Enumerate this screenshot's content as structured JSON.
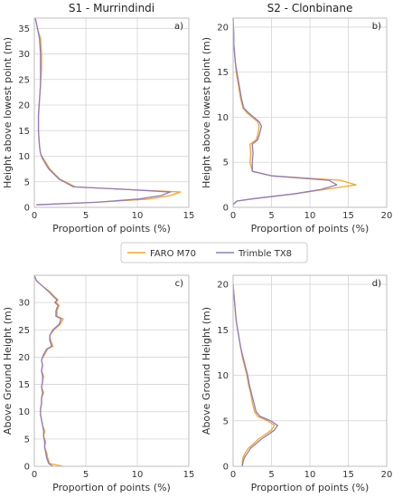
{
  "legend": {
    "entries": [
      {
        "name": "FARO M70",
        "color": "#f5a623"
      },
      {
        "name": "Trimble TX8",
        "color": "#8e7cc3"
      }
    ]
  },
  "chart_data": [
    {
      "type": "line",
      "id": "a",
      "title": "S1 - Murrindindi",
      "panel_label": "a)",
      "xlabel": "Proportion of points (%)",
      "ylabel": "Height above lowest point (m)",
      "xlim": [
        0,
        15
      ],
      "ylim": [
        0,
        37
      ],
      "xticks": [
        0,
        5,
        10,
        15
      ],
      "yticks": [
        0,
        5,
        10,
        15,
        20,
        25,
        30,
        35
      ],
      "grid": true,
      "series": [
        {
          "name": "FARO M70",
          "points": [
            [
              0.2,
              0.5
            ],
            [
              6,
              1
            ],
            [
              11,
              1.6
            ],
            [
              13.2,
              2.3
            ],
            [
              14.2,
              3
            ],
            [
              9,
              3.5
            ],
            [
              4,
              4
            ],
            [
              3,
              5
            ],
            [
              2.5,
              5.5
            ],
            [
              2,
              6.5
            ],
            [
              1.5,
              7.5
            ],
            [
              1.2,
              8.5
            ],
            [
              0.9,
              9.5
            ],
            [
              0.6,
              10.5
            ],
            [
              0.5,
              12
            ],
            [
              0.4,
              15
            ],
            [
              0.4,
              18
            ],
            [
              0.5,
              21
            ],
            [
              0.6,
              24
            ],
            [
              0.7,
              27
            ],
            [
              0.7,
              30
            ],
            [
              0.6,
              33
            ],
            [
              0.3,
              35
            ],
            [
              0.1,
              37
            ]
          ]
        },
        {
          "name": "Trimble TX8",
          "points": [
            [
              0.2,
              0.5
            ],
            [
              6,
              1
            ],
            [
              10,
              1.6
            ],
            [
              12.3,
              2.3
            ],
            [
              13.2,
              3
            ],
            [
              9,
              3.5
            ],
            [
              3.8,
              4
            ],
            [
              2.9,
              5
            ],
            [
              2.4,
              5.5
            ],
            [
              1.9,
              6.5
            ],
            [
              1.4,
              7.5
            ],
            [
              1.1,
              8.5
            ],
            [
              0.8,
              9.5
            ],
            [
              0.6,
              10.5
            ],
            [
              0.5,
              12
            ],
            [
              0.4,
              15
            ],
            [
              0.4,
              18
            ],
            [
              0.5,
              21
            ],
            [
              0.6,
              24
            ],
            [
              0.6,
              27
            ],
            [
              0.6,
              30
            ],
            [
              0.5,
              33
            ],
            [
              0.3,
              35
            ],
            [
              0.1,
              37
            ]
          ]
        }
      ]
    },
    {
      "type": "line",
      "id": "b",
      "title": "S2 - Clonbinane",
      "panel_label": "b)",
      "xlabel": "Proportion of points (%)",
      "ylabel": "Height above lowest point (m)",
      "xlim": [
        0,
        20
      ],
      "ylim": [
        0,
        21
      ],
      "xticks": [
        0,
        5,
        10,
        15,
        20
      ],
      "yticks": [
        0,
        5,
        10,
        15,
        20
      ],
      "grid": true,
      "series": [
        {
          "name": "FARO M70",
          "points": [
            [
              0,
              0.3
            ],
            [
              0.5,
              0.7
            ],
            [
              3,
              1
            ],
            [
              8,
              1.5
            ],
            [
              12,
              2
            ],
            [
              16,
              2.5
            ],
            [
              14,
              3
            ],
            [
              5,
              3.5
            ],
            [
              2.5,
              4
            ],
            [
              2.2,
              5
            ],
            [
              2.3,
              6
            ],
            [
              2.2,
              7
            ],
            [
              3,
              7.5
            ],
            [
              3.2,
              8
            ],
            [
              3.4,
              9
            ],
            [
              3.2,
              9.5
            ],
            [
              2.5,
              10
            ],
            [
              1.8,
              10.5
            ],
            [
              1.3,
              11
            ],
            [
              1,
              12
            ],
            [
              0.8,
              13
            ],
            [
              0.6,
              14
            ],
            [
              0.4,
              15
            ],
            [
              0.3,
              16
            ],
            [
              0.2,
              17
            ],
            [
              0.1,
              18
            ],
            [
              0.1,
              19
            ],
            [
              0,
              21
            ]
          ]
        },
        {
          "name": "Trimble TX8",
          "points": [
            [
              0,
              0.3
            ],
            [
              0.5,
              0.7
            ],
            [
              3,
              1
            ],
            [
              8,
              1.5
            ],
            [
              11.5,
              2
            ],
            [
              13.5,
              2.5
            ],
            [
              12.5,
              3
            ],
            [
              5,
              3.5
            ],
            [
              2.5,
              4
            ],
            [
              2.5,
              5
            ],
            [
              2.6,
              6
            ],
            [
              2.5,
              7
            ],
            [
              3.2,
              7.5
            ],
            [
              3.4,
              8
            ],
            [
              3.7,
              9
            ],
            [
              3.4,
              9.5
            ],
            [
              2.7,
              10
            ],
            [
              2,
              10.5
            ],
            [
              1.4,
              11
            ],
            [
              1.1,
              12
            ],
            [
              0.9,
              13
            ],
            [
              0.7,
              14
            ],
            [
              0.5,
              15
            ],
            [
              0.3,
              16
            ],
            [
              0.2,
              17
            ],
            [
              0.1,
              18
            ],
            [
              0.1,
              19
            ],
            [
              0,
              21
            ]
          ]
        }
      ]
    },
    {
      "type": "line",
      "id": "c",
      "panel_label": "c)",
      "xlabel": "Proportion of points (%)",
      "ylabel": "Above Ground Height (m)",
      "xlim": [
        0,
        15
      ],
      "ylim": [
        0,
        35
      ],
      "xticks": [
        0,
        5,
        10,
        15
      ],
      "yticks": [
        0,
        5,
        10,
        15,
        20,
        25,
        30
      ],
      "grid": true,
      "series": [
        {
          "name": "FARO M70",
          "points": [
            [
              2.8,
              0
            ],
            [
              1.5,
              0.5
            ],
            [
              1.3,
              1.5
            ],
            [
              1.2,
              2.5
            ],
            [
              1,
              3.5
            ],
            [
              1.1,
              4.5
            ],
            [
              0.9,
              5.5
            ],
            [
              1,
              6.5
            ],
            [
              0.8,
              7.5
            ],
            [
              0.7,
              8.5
            ],
            [
              0.6,
              9.5
            ],
            [
              0.6,
              10.5
            ],
            [
              0.7,
              11.5
            ],
            [
              0.7,
              12.5
            ],
            [
              0.9,
              13.5
            ],
            [
              0.7,
              14.5
            ],
            [
              0.8,
              15.5
            ],
            [
              0.9,
              16.5
            ],
            [
              0.7,
              17.5
            ],
            [
              0.8,
              18.5
            ],
            [
              0.7,
              19.5
            ],
            [
              1,
              20.5
            ],
            [
              1.3,
              21.5
            ],
            [
              1.8,
              22
            ],
            [
              1.6,
              23
            ],
            [
              1.5,
              24
            ],
            [
              1.9,
              25
            ],
            [
              2.5,
              26
            ],
            [
              2.8,
              27
            ],
            [
              2.2,
              27.5
            ],
            [
              2.2,
              28.5
            ],
            [
              2.4,
              29.5
            ],
            [
              2.1,
              30
            ],
            [
              2.3,
              30.5
            ],
            [
              2,
              31
            ],
            [
              1.5,
              32
            ],
            [
              0.8,
              33
            ],
            [
              0.2,
              34
            ],
            [
              0,
              35
            ]
          ]
        },
        {
          "name": "Trimble TX8",
          "points": [
            [
              1.8,
              0
            ],
            [
              1.4,
              0.5
            ],
            [
              1.2,
              1.5
            ],
            [
              1.1,
              2.5
            ],
            [
              1,
              3.5
            ],
            [
              1,
              4.5
            ],
            [
              0.9,
              5.5
            ],
            [
              0.9,
              6.5
            ],
            [
              0.8,
              7.5
            ],
            [
              0.7,
              8.5
            ],
            [
              0.6,
              9.5
            ],
            [
              0.6,
              10.5
            ],
            [
              0.7,
              11.5
            ],
            [
              0.7,
              12.5
            ],
            [
              0.8,
              13.5
            ],
            [
              0.7,
              14.5
            ],
            [
              0.8,
              15.5
            ],
            [
              0.8,
              16.5
            ],
            [
              0.7,
              17.5
            ],
            [
              0.8,
              18.5
            ],
            [
              0.7,
              19.5
            ],
            [
              0.9,
              20.5
            ],
            [
              1.2,
              21.5
            ],
            [
              1.7,
              22
            ],
            [
              1.5,
              23
            ],
            [
              1.5,
              24
            ],
            [
              1.8,
              25
            ],
            [
              2.4,
              26
            ],
            [
              2.6,
              27
            ],
            [
              2.1,
              27.5
            ],
            [
              2.1,
              28.5
            ],
            [
              2.3,
              29.5
            ],
            [
              2,
              30
            ],
            [
              2.2,
              30.5
            ],
            [
              1.9,
              31
            ],
            [
              1.4,
              32
            ],
            [
              0.8,
              33
            ],
            [
              0.2,
              34
            ],
            [
              0,
              35
            ]
          ]
        }
      ]
    },
    {
      "type": "line",
      "id": "d",
      "panel_label": "d)",
      "xlabel": "Proportion of points (%)",
      "ylabel": "Above Ground Height (m)",
      "xlim": [
        0,
        20
      ],
      "ylim": [
        0,
        21
      ],
      "xticks": [
        0,
        5,
        10,
        15,
        20
      ],
      "yticks": [
        0,
        5,
        10,
        15,
        20
      ],
      "grid": true,
      "series": [
        {
          "name": "FARO M70",
          "points": [
            [
              1.2,
              0
            ],
            [
              1.2,
              0.5
            ],
            [
              1.3,
              1
            ],
            [
              1.6,
              1.5
            ],
            [
              2,
              2
            ],
            [
              2.7,
              2.5
            ],
            [
              3.3,
              3
            ],
            [
              4.2,
              3.5
            ],
            [
              5,
              4
            ],
            [
              5.4,
              4.5
            ],
            [
              4.5,
              5
            ],
            [
              3.2,
              5.5
            ],
            [
              2.8,
              6
            ],
            [
              2.5,
              7
            ],
            [
              2.3,
              8
            ],
            [
              2,
              9
            ],
            [
              1.8,
              10
            ],
            [
              1.5,
              11
            ],
            [
              1.2,
              12
            ],
            [
              1,
              13
            ],
            [
              0.8,
              14
            ],
            [
              0.6,
              15
            ],
            [
              0.4,
              16
            ],
            [
              0.3,
              17
            ],
            [
              0.2,
              18
            ],
            [
              0.1,
              19
            ],
            [
              0,
              20
            ]
          ]
        },
        {
          "name": "Trimble TX8",
          "points": [
            [
              1.2,
              0
            ],
            [
              1.3,
              0.5
            ],
            [
              1.5,
              1
            ],
            [
              1.9,
              1.5
            ],
            [
              2.3,
              2
            ],
            [
              3,
              2.5
            ],
            [
              3.7,
              3
            ],
            [
              4.6,
              3.5
            ],
            [
              5.4,
              4
            ],
            [
              5.8,
              4.5
            ],
            [
              4.9,
              5
            ],
            [
              3.5,
              5.5
            ],
            [
              3,
              6
            ],
            [
              2.7,
              7
            ],
            [
              2.4,
              8
            ],
            [
              2.1,
              9
            ],
            [
              1.9,
              10
            ],
            [
              1.6,
              11
            ],
            [
              1.3,
              12
            ],
            [
              1,
              13
            ],
            [
              0.8,
              14
            ],
            [
              0.6,
              15
            ],
            [
              0.4,
              16
            ],
            [
              0.3,
              17
            ],
            [
              0.2,
              18
            ],
            [
              0.1,
              19
            ],
            [
              0,
              20
            ]
          ]
        }
      ]
    }
  ]
}
